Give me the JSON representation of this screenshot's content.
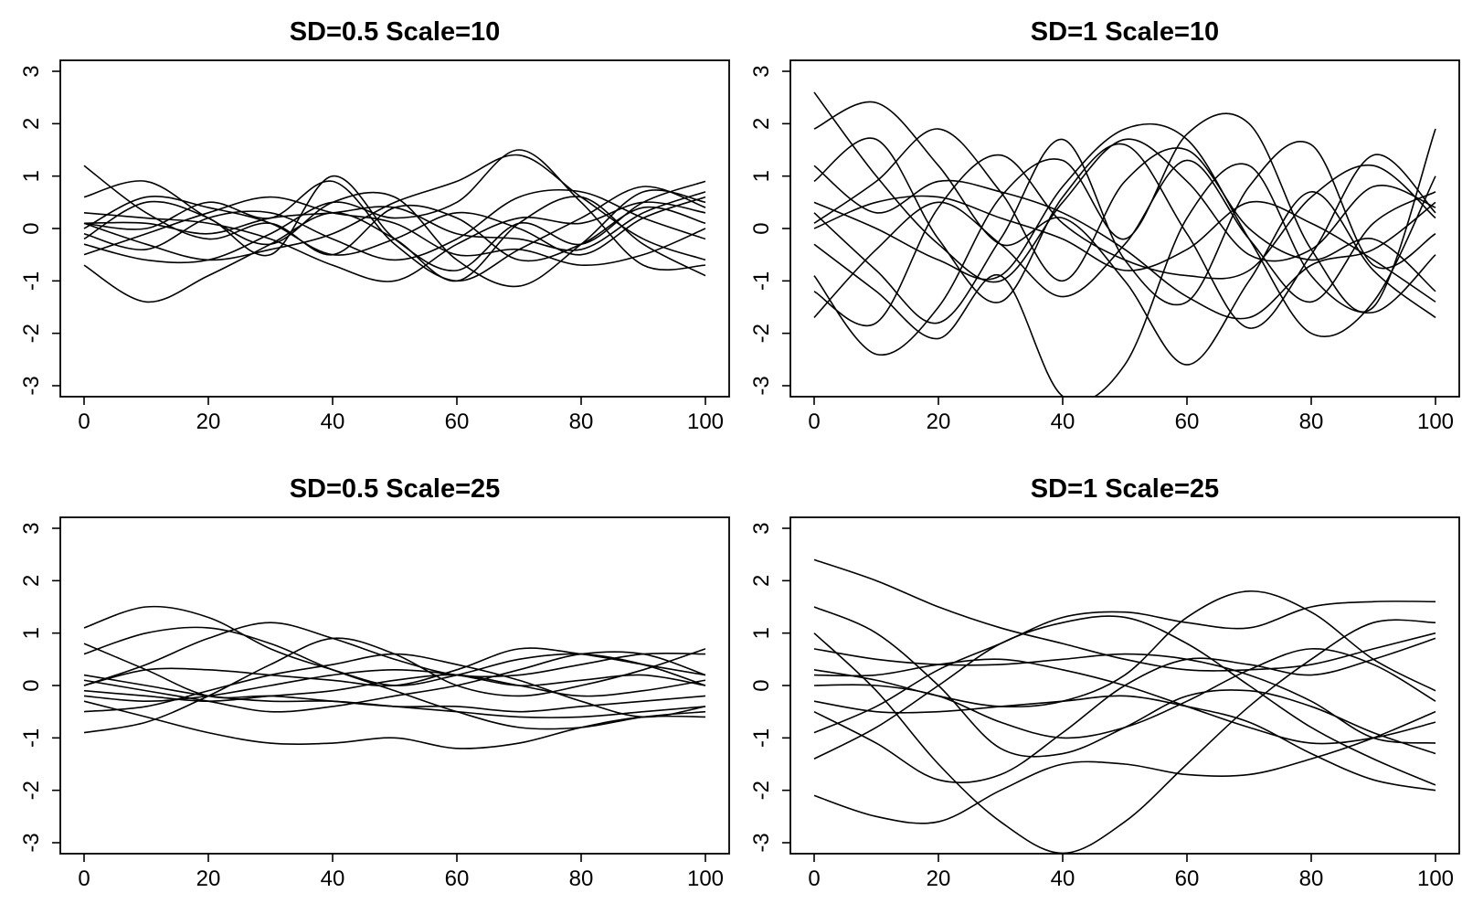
{
  "chart_data": [
    {
      "type": "line",
      "title": "SD=0.5 Scale=10",
      "xlabel": "",
      "ylabel": "",
      "xlim": [
        0,
        100
      ],
      "ylim": [
        -3,
        3
      ],
      "x_ticks": [
        "0",
        "20",
        "40",
        "60",
        "80",
        "100"
      ],
      "y_ticks": [
        "-3",
        "-2",
        "-1",
        "0",
        "1",
        "2",
        "3"
      ],
      "grid": false,
      "legend": "none",
      "x": [
        0,
        10,
        20,
        30,
        40,
        50,
        60,
        70,
        80,
        90,
        100
      ],
      "series": [
        {
          "values": [
            1.2,
            0.3,
            -0.2,
            0.1,
            -0.5,
            0.4,
            0.2,
            -0.6,
            -0.3,
            0.4,
            0.1
          ]
        },
        {
          "values": [
            0.6,
            0.9,
            0.2,
            -0.3,
            0.5,
            0.6,
            -0.6,
            -1.1,
            -0.3,
            0.7,
            0.5
          ]
        },
        {
          "values": [
            -0.7,
            -1.4,
            -0.9,
            -0.3,
            0.3,
            -0.2,
            -1.0,
            0.1,
            0.6,
            -0.3,
            -0.9
          ]
        },
        {
          "values": [
            0.1,
            0.0,
            0.5,
            0.2,
            0.9,
            -0.3,
            -1.0,
            -0.4,
            0.2,
            0.8,
            0.4
          ]
        },
        {
          "values": [
            -0.2,
            0.5,
            0.2,
            -0.5,
            1.0,
            -0.2,
            -0.8,
            0.1,
            -0.3,
            0.5,
            0.9
          ]
        },
        {
          "values": [
            0.1,
            -0.3,
            -0.6,
            -0.4,
            -0.1,
            0.5,
            0.9,
            1.4,
            0.6,
            -0.2,
            -0.6
          ]
        },
        {
          "values": [
            -0.5,
            -0.1,
            0.3,
            0.6,
            0.3,
            0.1,
            -0.5,
            -0.4,
            -0.7,
            -0.5,
            0.0
          ]
        },
        {
          "values": [
            0.0,
            0.6,
            0.4,
            0.1,
            -0.5,
            -0.2,
            0.3,
            0.0,
            -0.5,
            0.2,
            0.6
          ]
        },
        {
          "values": [
            -0.3,
            -0.6,
            -0.6,
            -0.1,
            0.5,
            0.2,
            0.5,
            1.5,
            0.5,
            -0.7,
            -0.7
          ]
        },
        {
          "values": [
            0.3,
            0.2,
            0.1,
            -0.2,
            -0.7,
            -1.0,
            -0.3,
            0.2,
            0.1,
            0.5,
            0.3
          ]
        },
        {
          "values": [
            -0.1,
            -0.4,
            0.2,
            0.3,
            -0.2,
            -0.6,
            -0.2,
            0.6,
            0.7,
            0.2,
            -0.2
          ]
        },
        {
          "values": [
            0.1,
            0.1,
            -0.1,
            0.2,
            0.3,
            0.4,
            -0.1,
            -0.2,
            -0.4,
            0.3,
            0.7
          ]
        }
      ]
    },
    {
      "type": "line",
      "title": "SD=1 Scale=10",
      "xlabel": "",
      "ylabel": "",
      "xlim": [
        0,
        100
      ],
      "ylim": [
        -3,
        3
      ],
      "x_ticks": [
        "0",
        "20",
        "40",
        "60",
        "80",
        "100"
      ],
      "y_ticks": [
        "-3",
        "-2",
        "-1",
        "0",
        "1",
        "2",
        "3"
      ],
      "grid": false,
      "legend": "none",
      "x": [
        0,
        10,
        20,
        30,
        40,
        50,
        60,
        70,
        80,
        90,
        100
      ],
      "series": [
        {
          "values": [
            2.6,
            1.0,
            -0.3,
            -1.0,
            0.5,
            1.7,
            0.9,
            -0.5,
            -0.4,
            0.8,
            0.4
          ]
        },
        {
          "values": [
            1.9,
            2.4,
            1.2,
            -0.3,
            0.2,
            -1.0,
            -2.6,
            -1.0,
            0.7,
            -0.8,
            -1.7
          ]
        },
        {
          "values": [
            -0.9,
            -2.4,
            -1.5,
            0.6,
            1.3,
            -0.2,
            1.8,
            2.0,
            -0.4,
            -1.5,
            1.9
          ]
        },
        {
          "values": [
            0.9,
            1.7,
            -0.2,
            -1.4,
            0.6,
            1.6,
            -0.1,
            -1.9,
            -0.5,
            1.4,
            0.3
          ]
        },
        {
          "values": [
            -1.7,
            -0.4,
            0.5,
            -0.3,
            -1.3,
            -0.3,
            1.3,
            -0.2,
            -1.4,
            0.1,
            0.7
          ]
        },
        {
          "values": [
            0.3,
            -0.8,
            -1.8,
            -0.2,
            1.7,
            -0.6,
            -1.4,
            0.8,
            1.6,
            -0.7,
            -0.1
          ]
        },
        {
          "values": [
            0.0,
            0.5,
            0.6,
            0.2,
            -0.2,
            -0.8,
            -0.4,
            0.5,
            0.1,
            -0.6,
            -1.4
          ]
        },
        {
          "values": [
            -0.3,
            -1.2,
            -2.1,
            -0.9,
            -3.2,
            -2.6,
            0.2,
            1.2,
            -0.9,
            -1.6,
            -0.5
          ]
        },
        {
          "values": [
            1.2,
            0.3,
            0.9,
            0.7,
            0.3,
            -0.4,
            -1.3,
            -1.7,
            -0.7,
            -0.4,
            0.5
          ]
        },
        {
          "values": [
            0.5,
            0.0,
            -0.6,
            -0.9,
            0.8,
            1.9,
            1.7,
            -0.2,
            -2.0,
            -1.4,
            1.0
          ]
        },
        {
          "values": [
            -1.2,
            -1.8,
            0.4,
            1.4,
            0.1,
            -0.6,
            -0.9,
            -0.8,
            0.6,
            1.2,
            0.2
          ]
        },
        {
          "values": [
            0.1,
            0.9,
            1.9,
            0.7,
            -1.0,
            0.9,
            1.5,
            0.0,
            -0.6,
            -0.2,
            -1.2
          ]
        }
      ]
    },
    {
      "type": "line",
      "title": "SD=0.5 Scale=25",
      "xlabel": "",
      "ylabel": "",
      "xlim": [
        0,
        100
      ],
      "ylim": [
        -3,
        3
      ],
      "x_ticks": [
        "0",
        "20",
        "40",
        "60",
        "80",
        "100"
      ],
      "y_ticks": [
        "-3",
        "-2",
        "-1",
        "0",
        "1",
        "2",
        "3"
      ],
      "grid": false,
      "legend": "none",
      "x": [
        0,
        10,
        20,
        30,
        40,
        50,
        60,
        70,
        80,
        90,
        100
      ],
      "series": [
        {
          "values": [
            1.1,
            1.5,
            1.3,
            0.7,
            0.3,
            0.0,
            0.2,
            0.5,
            0.6,
            0.4,
            0.0
          ]
        },
        {
          "values": [
            0.8,
            0.3,
            -0.2,
            -0.2,
            -0.3,
            -0.4,
            -0.4,
            -0.5,
            -0.4,
            -0.3,
            -0.2
          ]
        },
        {
          "values": [
            -0.9,
            -0.7,
            -0.2,
            0.4,
            0.9,
            0.6,
            0.0,
            -0.2,
            0.0,
            0.3,
            0.7
          ]
        },
        {
          "values": [
            0.0,
            0.4,
            0.9,
            1.2,
            0.9,
            0.5,
            0.2,
            0.2,
            0.4,
            0.6,
            0.6
          ]
        },
        {
          "values": [
            -0.3,
            -0.6,
            -0.9,
            -1.1,
            -1.1,
            -1.0,
            -1.2,
            -1.1,
            -0.8,
            -0.6,
            -0.6
          ]
        },
        {
          "values": [
            0.6,
            1.0,
            1.1,
            0.8,
            0.3,
            -0.1,
            -0.5,
            -0.8,
            -0.8,
            -0.6,
            -0.5
          ]
        },
        {
          "values": [
            0.1,
            -0.1,
            -0.3,
            -0.5,
            -0.4,
            -0.2,
            0.0,
            0.3,
            0.6,
            0.6,
            0.2
          ]
        },
        {
          "values": [
            -0.1,
            -0.2,
            -0.3,
            -0.2,
            -0.1,
            0.1,
            0.2,
            0.0,
            -0.2,
            -0.1,
            0.1
          ]
        },
        {
          "values": [
            0.0,
            0.3,
            0.3,
            0.2,
            0.1,
            0.0,
            0.3,
            0.7,
            0.6,
            0.4,
            0.2
          ]
        },
        {
          "values": [
            -0.5,
            -0.4,
            -0.1,
            0.2,
            0.4,
            0.6,
            0.4,
            0.1,
            -0.3,
            -0.6,
            -0.4
          ]
        },
        {
          "values": [
            0.2,
            0.0,
            -0.2,
            -0.3,
            -0.3,
            -0.4,
            -0.5,
            -0.6,
            -0.6,
            -0.5,
            -0.4
          ]
        },
        {
          "values": [
            -0.2,
            -0.3,
            -0.2,
            0.0,
            0.2,
            0.3,
            0.2,
            0.0,
            0.1,
            0.2,
            0.0
          ]
        }
      ]
    },
    {
      "type": "line",
      "title": "SD=1 Scale=25",
      "xlabel": "",
      "ylabel": "",
      "xlim": [
        0,
        100
      ],
      "ylim": [
        -3,
        3
      ],
      "x_ticks": [
        "0",
        "20",
        "40",
        "60",
        "80",
        "100"
      ],
      "y_ticks": [
        "-3",
        "-2",
        "-1",
        "0",
        "1",
        "2",
        "3"
      ],
      "grid": false,
      "legend": "none",
      "x": [
        0,
        10,
        20,
        30,
        40,
        50,
        60,
        70,
        80,
        90,
        100
      ],
      "series": [
        {
          "values": [
            2.4,
            2.0,
            1.5,
            1.1,
            0.8,
            0.5,
            0.3,
            0.3,
            0.4,
            0.7,
            1.0
          ]
        },
        {
          "values": [
            1.5,
            1.0,
            0.0,
            -1.2,
            -1.3,
            -0.8,
            -0.2,
            -0.1,
            -0.4,
            -0.9,
            -1.3
          ]
        },
        {
          "values": [
            -2.1,
            -2.5,
            -2.6,
            -2.0,
            -1.5,
            -1.5,
            -1.7,
            -1.7,
            -1.4,
            -1.0,
            -0.5
          ]
        },
        {
          "values": [
            1.0,
            -0.1,
            -1.5,
            -2.6,
            -3.2,
            -2.6,
            -1.5,
            -0.4,
            0.5,
            1.2,
            1.2
          ]
        },
        {
          "values": [
            -1.4,
            -0.8,
            0.0,
            0.8,
            1.2,
            1.3,
            0.8,
            0.0,
            -0.8,
            -1.4,
            -1.9
          ]
        },
        {
          "values": [
            0.3,
            0.1,
            -0.2,
            -0.4,
            -0.3,
            0.2,
            1.3,
            1.8,
            1.4,
            0.5,
            -0.1
          ]
        },
        {
          "values": [
            -0.9,
            -0.4,
            0.3,
            0.8,
            1.3,
            1.4,
            1.2,
            1.1,
            1.5,
            1.6,
            1.6
          ]
        },
        {
          "values": [
            0.0,
            0.0,
            -0.2,
            -0.7,
            -1.0,
            -0.8,
            -0.3,
            0.3,
            0.7,
            0.4,
            -0.3
          ]
        },
        {
          "values": [
            0.7,
            0.5,
            0.4,
            0.4,
            0.5,
            0.6,
            0.5,
            0.2,
            -0.3,
            -1.0,
            -1.1
          ]
        },
        {
          "values": [
            -0.3,
            -0.5,
            -0.5,
            -0.4,
            -0.3,
            -0.2,
            -0.4,
            -0.7,
            -1.3,
            -1.8,
            -2.0
          ]
        },
        {
          "values": [
            0.2,
            0.2,
            0.4,
            0.5,
            0.3,
            0.0,
            -0.4,
            -0.8,
            -1.1,
            -1.0,
            -0.7
          ]
        },
        {
          "values": [
            -0.5,
            -1.1,
            -1.8,
            -1.7,
            -0.9,
            0.0,
            0.5,
            0.4,
            0.2,
            0.5,
            0.9
          ]
        }
      ]
    }
  ]
}
